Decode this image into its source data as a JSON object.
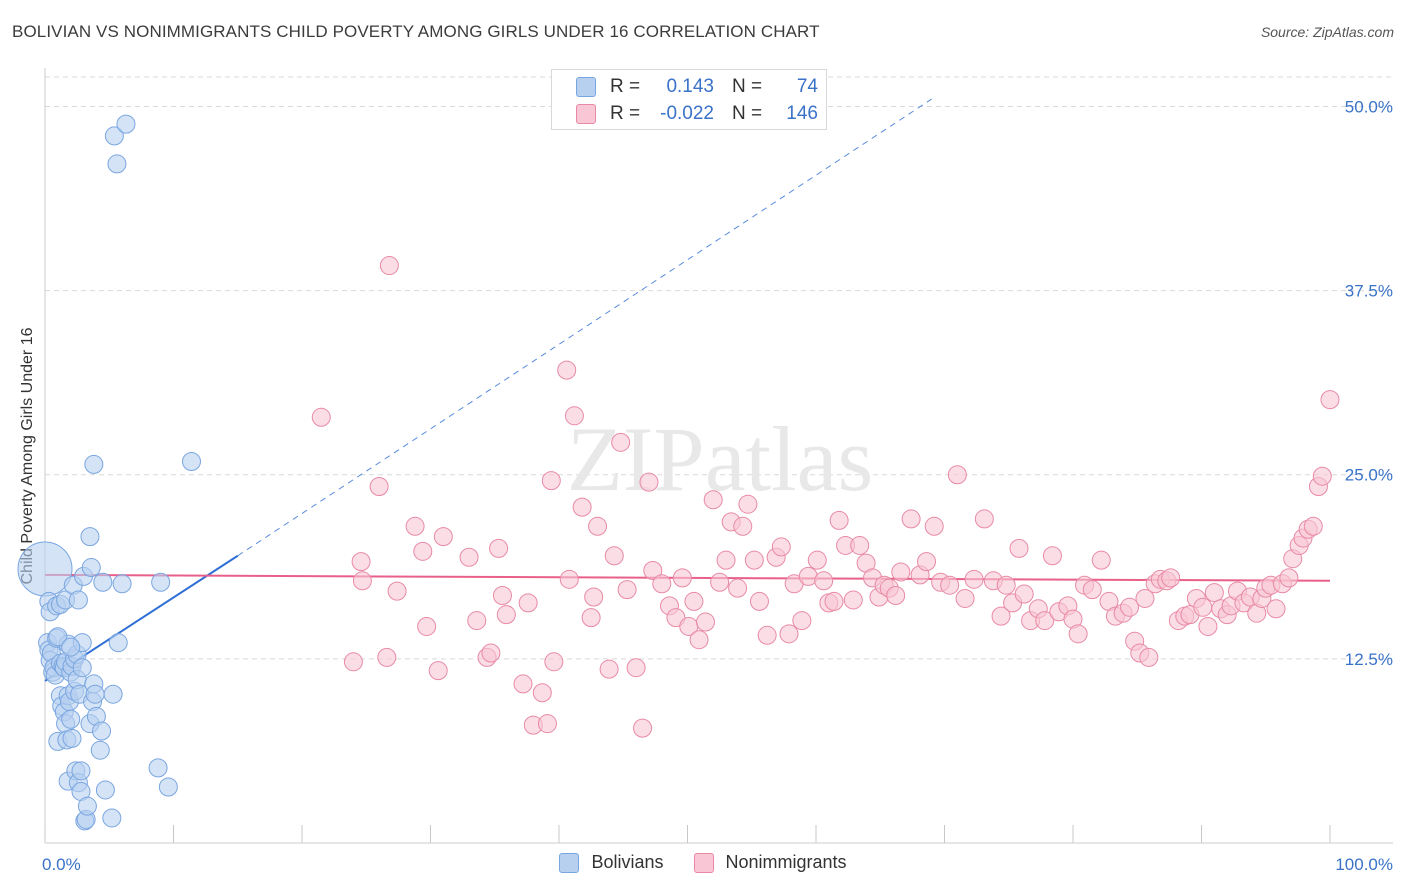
{
  "title": "BOLIVIAN VS NONIMMIGRANTS CHILD POVERTY AMONG GIRLS UNDER 16 CORRELATION CHART",
  "source": "Source: ZipAtlas.com",
  "watermark": "ZIPatlas",
  "legend": {
    "rows": [
      {
        "r_label": "R =",
        "r_value": "0.143",
        "n_label": "N =",
        "n_value": "74"
      },
      {
        "r_label": "R =",
        "r_value": "-0.022",
        "n_label": "N =",
        "n_value": "146"
      }
    ]
  },
  "bottom_legend": {
    "series1": "Bolivians",
    "series2": "Nonimmigrants"
  },
  "colors": {
    "blue_fill": "#b8d0f0",
    "blue_stroke": "#7aa6e0",
    "blue_line": "#2f6fd6",
    "pink_fill": "#f8c6d4",
    "pink_stroke": "#e88aa6",
    "pink_line": "#e8608a",
    "axis_text": "#3a72c8",
    "grid": "#d9d9d9"
  },
  "chart_data": {
    "type": "scatter",
    "title": "BOLIVIAN VS NONIMMIGRANTS CHILD POVERTY AMONG GIRLS UNDER 16 CORRELATION CHART",
    "xlabel": "",
    "ylabel": "Child Poverty Among Girls Under 16",
    "xlim": [
      0,
      100
    ],
    "ylim": [
      0,
      52
    ],
    "x_tick_labels": [
      "0.0%",
      "100.0%"
    ],
    "y_ticks": [
      12.5,
      25.0,
      37.5,
      50.0
    ],
    "y_tick_labels": [
      "12.5%",
      "25.0%",
      "37.5%",
      "50.0%"
    ],
    "grid": true,
    "series": [
      {
        "name": "Bolivians",
        "r": 0.143,
        "n": 74,
        "trend": {
          "x0": 0,
          "y0": 11.0,
          "x1": 15,
          "y1": 19.5,
          "dashed_to_x": 69,
          "dashed_to_y": 50.5
        },
        "points": [
          [
            0.0,
            18.6,
            3
          ],
          [
            0.2,
            13.6,
            1
          ],
          [
            0.3,
            13.1,
            1
          ],
          [
            0.3,
            16.4,
            1
          ],
          [
            0.4,
            15.7,
            1
          ],
          [
            0.4,
            12.4,
            1
          ],
          [
            0.5,
            12.9,
            1
          ],
          [
            0.6,
            11.6,
            1
          ],
          [
            0.7,
            11.9,
            1
          ],
          [
            0.9,
            13.9,
            1
          ],
          [
            0.8,
            11.4,
            1
          ],
          [
            0.9,
            16.1,
            1
          ],
          [
            1.0,
            6.9,
            1
          ],
          [
            1.2,
            12.2,
            1
          ],
          [
            1.2,
            10.0,
            1
          ],
          [
            1.2,
            16.2,
            1
          ],
          [
            1.3,
            9.3,
            1
          ],
          [
            1.4,
            12.0,
            1
          ],
          [
            1.5,
            8.9,
            1
          ],
          [
            1.5,
            11.9,
            1
          ],
          [
            1.6,
            8.1,
            1
          ],
          [
            1.6,
            12.3,
            1
          ],
          [
            1.6,
            16.5,
            1
          ],
          [
            1.7,
            7.0,
            1
          ],
          [
            1.8,
            10.0,
            1
          ],
          [
            1.8,
            4.2,
            1
          ],
          [
            1.8,
            13.5,
            1
          ],
          [
            1.9,
            9.6,
            1
          ],
          [
            2.0,
            11.6,
            1
          ],
          [
            2.0,
            8.4,
            1
          ],
          [
            2.1,
            7.1,
            1
          ],
          [
            2.1,
            12.0,
            1
          ],
          [
            2.2,
            17.5,
            1
          ],
          [
            2.3,
            12.5,
            1
          ],
          [
            2.3,
            10.3,
            1
          ],
          [
            2.4,
            4.9,
            1
          ],
          [
            2.5,
            11.1,
            1
          ],
          [
            2.5,
            12.8,
            1
          ],
          [
            2.6,
            4.1,
            1
          ],
          [
            2.6,
            16.5,
            1
          ],
          [
            2.7,
            10.1,
            1
          ],
          [
            2.8,
            3.5,
            1
          ],
          [
            2.8,
            4.9,
            1
          ],
          [
            2.9,
            13.6,
            1
          ],
          [
            2.9,
            11.9,
            1
          ],
          [
            3.0,
            18.1,
            1
          ],
          [
            3.1,
            1.5,
            1
          ],
          [
            3.2,
            1.6,
            1
          ],
          [
            3.3,
            2.5,
            1
          ],
          [
            3.5,
            20.8,
            1
          ],
          [
            3.5,
            8.1,
            1
          ],
          [
            3.6,
            18.7,
            1
          ],
          [
            3.7,
            9.6,
            1
          ],
          [
            3.8,
            25.7,
            1
          ],
          [
            3.8,
            10.8,
            1
          ],
          [
            3.9,
            10.1,
            1
          ],
          [
            4.0,
            8.6,
            1
          ],
          [
            4.3,
            6.3,
            1
          ],
          [
            4.4,
            7.6,
            1
          ],
          [
            4.5,
            17.7,
            1
          ],
          [
            4.7,
            3.6,
            1
          ],
          [
            5.2,
            1.7,
            1
          ],
          [
            5.3,
            10.1,
            1
          ],
          [
            5.6,
            46.1,
            1
          ],
          [
            5.4,
            48.0,
            1
          ],
          [
            5.7,
            13.6,
            1
          ],
          [
            6.0,
            17.6,
            1
          ],
          [
            6.3,
            48.8,
            1
          ],
          [
            8.8,
            5.1,
            1
          ],
          [
            9.0,
            17.7,
            1
          ],
          [
            9.6,
            3.8,
            1
          ],
          [
            11.4,
            25.9,
            1
          ],
          [
            1.0,
            14.0,
            1
          ],
          [
            2.0,
            13.3,
            1
          ]
        ]
      },
      {
        "name": "Nonimmigrants",
        "r": -0.022,
        "n": 146,
        "trend": {
          "x0": 0,
          "y0": 18.2,
          "x1": 100,
          "y1": 17.8
        },
        "points": [
          [
            21.5,
            28.9,
            1
          ],
          [
            24.0,
            12.3,
            1
          ],
          [
            24.6,
            19.1,
            1
          ],
          [
            24.7,
            17.8,
            1
          ],
          [
            26.0,
            24.2,
            1
          ],
          [
            26.6,
            12.6,
            1
          ],
          [
            26.8,
            39.2,
            1
          ],
          [
            27.4,
            17.1,
            1
          ],
          [
            28.8,
            21.5,
            1
          ],
          [
            29.4,
            19.8,
            1
          ],
          [
            29.7,
            14.7,
            1
          ],
          [
            30.6,
            11.7,
            1
          ],
          [
            31.0,
            20.8,
            1
          ],
          [
            33.0,
            19.4,
            1
          ],
          [
            33.6,
            15.1,
            1
          ],
          [
            34.4,
            12.6,
            1
          ],
          [
            34.7,
            12.9,
            1
          ],
          [
            35.3,
            20.0,
            1
          ],
          [
            35.6,
            16.8,
            1
          ],
          [
            35.9,
            15.5,
            1
          ],
          [
            37.2,
            10.8,
            1
          ],
          [
            37.6,
            16.3,
            1
          ],
          [
            38.0,
            8.0,
            1
          ],
          [
            38.7,
            10.2,
            1
          ],
          [
            39.1,
            8.1,
            1
          ],
          [
            39.4,
            24.6,
            1
          ],
          [
            39.6,
            12.3,
            1
          ],
          [
            40.6,
            32.1,
            1
          ],
          [
            40.8,
            17.9,
            1
          ],
          [
            41.2,
            29.0,
            1
          ],
          [
            41.8,
            22.8,
            1
          ],
          [
            42.5,
            15.3,
            1
          ],
          [
            42.7,
            16.7,
            1
          ],
          [
            43.0,
            21.5,
            1
          ],
          [
            43.9,
            11.8,
            1
          ],
          [
            44.3,
            19.5,
            1
          ],
          [
            44.8,
            27.2,
            1
          ],
          [
            45.3,
            17.2,
            1
          ],
          [
            46.0,
            11.9,
            1
          ],
          [
            46.5,
            7.8,
            1
          ],
          [
            47.0,
            24.5,
            1
          ],
          [
            47.3,
            18.5,
            1
          ],
          [
            48.0,
            17.6,
            1
          ],
          [
            48.6,
            16.1,
            1
          ],
          [
            49.1,
            15.3,
            1
          ],
          [
            49.6,
            18.0,
            1
          ],
          [
            50.1,
            14.7,
            1
          ],
          [
            50.5,
            16.4,
            1
          ],
          [
            50.9,
            13.8,
            1
          ],
          [
            51.4,
            15.0,
            1
          ],
          [
            52.0,
            23.3,
            1
          ],
          [
            52.5,
            17.7,
            1
          ],
          [
            53.0,
            19.2,
            1
          ],
          [
            53.4,
            21.8,
            1
          ],
          [
            53.9,
            17.3,
            1
          ],
          [
            54.3,
            21.5,
            1
          ],
          [
            54.7,
            23.0,
            1
          ],
          [
            55.2,
            19.2,
            1
          ],
          [
            55.6,
            16.4,
            1
          ],
          [
            56.2,
            14.1,
            1
          ],
          [
            56.9,
            19.4,
            1
          ],
          [
            57.3,
            20.1,
            1
          ],
          [
            57.9,
            14.2,
            1
          ],
          [
            58.3,
            17.6,
            1
          ],
          [
            58.9,
            15.1,
            1
          ],
          [
            59.4,
            18.1,
            1
          ],
          [
            60.1,
            19.2,
            1
          ],
          [
            60.6,
            17.8,
            1
          ],
          [
            61.0,
            16.3,
            1
          ],
          [
            61.4,
            16.4,
            1
          ],
          [
            61.8,
            21.9,
            1
          ],
          [
            62.3,
            20.2,
            1
          ],
          [
            62.9,
            16.5,
            1
          ],
          [
            63.4,
            20.2,
            1
          ],
          [
            63.9,
            19.0,
            1
          ],
          [
            64.4,
            18.0,
            1
          ],
          [
            64.9,
            16.7,
            1
          ],
          [
            65.3,
            17.5,
            1
          ],
          [
            65.7,
            17.3,
            1
          ],
          [
            66.2,
            16.8,
            1
          ],
          [
            66.6,
            18.4,
            1
          ],
          [
            67.4,
            22.0,
            1
          ],
          [
            68.1,
            18.2,
            1
          ],
          [
            68.6,
            19.1,
            1
          ],
          [
            69.2,
            21.5,
            1
          ],
          [
            69.7,
            17.7,
            1
          ],
          [
            70.4,
            17.5,
            1
          ],
          [
            71.0,
            25.0,
            1
          ],
          [
            71.6,
            16.6,
            1
          ],
          [
            72.3,
            17.9,
            1
          ],
          [
            73.1,
            22.0,
            1
          ],
          [
            73.8,
            17.8,
            1
          ],
          [
            74.4,
            15.4,
            1
          ],
          [
            74.8,
            17.5,
            1
          ],
          [
            75.3,
            16.3,
            1
          ],
          [
            75.8,
            20.0,
            1
          ],
          [
            76.2,
            16.9,
            1
          ],
          [
            76.7,
            15.1,
            1
          ],
          [
            77.3,
            15.9,
            1
          ],
          [
            77.8,
            15.1,
            1
          ],
          [
            78.4,
            19.5,
            1
          ],
          [
            78.9,
            15.7,
            1
          ],
          [
            79.6,
            16.1,
            1
          ],
          [
            80.0,
            15.2,
            1
          ],
          [
            80.4,
            14.2,
            1
          ],
          [
            80.9,
            17.5,
            1
          ],
          [
            81.5,
            17.2,
            1
          ],
          [
            82.2,
            19.2,
            1
          ],
          [
            82.8,
            16.4,
            1
          ],
          [
            83.3,
            15.4,
            1
          ],
          [
            83.9,
            15.6,
            1
          ],
          [
            84.4,
            16.0,
            1
          ],
          [
            84.8,
            13.7,
            1
          ],
          [
            85.2,
            12.9,
            1
          ],
          [
            85.6,
            16.6,
            1
          ],
          [
            85.9,
            12.6,
            1
          ],
          [
            86.4,
            17.6,
            1
          ],
          [
            86.8,
            17.9,
            1
          ],
          [
            87.3,
            17.8,
            1
          ],
          [
            87.6,
            18.0,
            1
          ],
          [
            88.2,
            15.1,
            1
          ],
          [
            88.7,
            15.4,
            1
          ],
          [
            89.1,
            15.5,
            1
          ],
          [
            89.6,
            16.6,
            1
          ],
          [
            90.1,
            16.0,
            1
          ],
          [
            90.5,
            14.7,
            1
          ],
          [
            91.0,
            17.0,
            1
          ],
          [
            91.5,
            15.9,
            1
          ],
          [
            92.0,
            15.5,
            1
          ],
          [
            92.3,
            16.1,
            1
          ],
          [
            92.8,
            17.1,
            1
          ],
          [
            93.3,
            16.3,
            1
          ],
          [
            93.8,
            16.7,
            1
          ],
          [
            94.3,
            15.6,
            1
          ],
          [
            94.7,
            16.6,
            1
          ],
          [
            95.0,
            17.3,
            1
          ],
          [
            95.4,
            17.5,
            1
          ],
          [
            95.8,
            15.9,
            1
          ],
          [
            96.3,
            17.6,
            1
          ],
          [
            96.8,
            18.0,
            1
          ],
          [
            97.1,
            19.3,
            1
          ],
          [
            97.6,
            20.2,
            1
          ],
          [
            97.9,
            20.7,
            1
          ],
          [
            98.3,
            21.3,
            1
          ],
          [
            98.7,
            21.5,
            1
          ],
          [
            99.1,
            24.2,
            1
          ],
          [
            99.4,
            24.9,
            1
          ],
          [
            100.0,
            30.1,
            1
          ]
        ]
      }
    ]
  }
}
